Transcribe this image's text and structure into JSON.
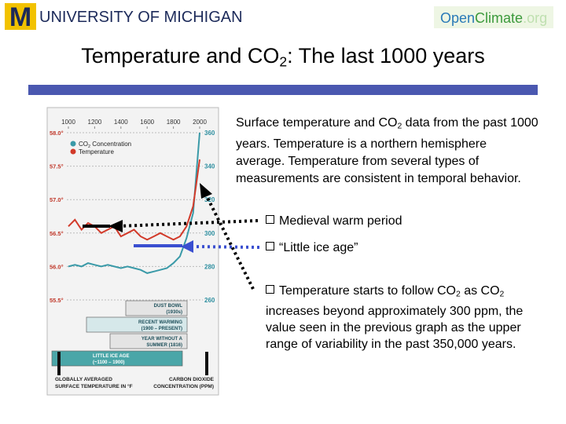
{
  "header": {
    "university": "UNIVERSITY OF MICHIGAN",
    "site": [
      "Open",
      "Climate",
      ".org"
    ]
  },
  "title": [
    "Temperature and CO",
    "2",
    ": The last 1000 years"
  ],
  "body": [
    "Surface temperature and CO",
    "2",
    " data from the past 1000 years.  Temperature is a northern hemisphere average.  Temperature from several types of measurements are consistent in temporal behavior."
  ],
  "bullets": [
    [
      "Medieval warm period"
    ],
    [
      "“Little ice age”"
    ],
    [
      "Temperature starts to follow CO",
      "2",
      " as CO",
      "2",
      " increases beyond approximately 300 ppm, the value seen in the previous graph as the upper range of variability in the past 350,000 years."
    ]
  ],
  "chart_data": {
    "type": "line",
    "x": [
      1000,
      1050,
      1100,
      1150,
      1200,
      1250,
      1300,
      1350,
      1400,
      1450,
      1500,
      1550,
      1600,
      1650,
      1700,
      1750,
      1800,
      1850,
      1900,
      1950,
      2000
    ],
    "xlim": [
      1000,
      2000
    ],
    "xticks": [
      1000,
      1200,
      1400,
      1600,
      1800,
      2000
    ],
    "ylim": [
      55.5,
      58
    ],
    "yticks": [
      {
        "value": 58,
        "label": "58.0°"
      },
      {
        "value": 57.5,
        "label": "57.5°"
      },
      {
        "value": 57,
        "label": "57.0°"
      },
      {
        "value": 56.5,
        "label": "56.5°"
      },
      {
        "value": 56,
        "label": "56.0°"
      },
      {
        "value": 55.5,
        "label": "55.5°"
      }
    ],
    "y2lim": [
      260,
      360
    ],
    "y2ticks": [
      360,
      340,
      320,
      300,
      280,
      260
    ],
    "grid": true,
    "series": [
      {
        "name": [
          "CO",
          "2",
          " Concentration"
        ],
        "color": "#3a9aa8",
        "axis": "y2",
        "values": [
          280,
          281,
          280,
          282,
          281,
          280,
          281,
          280,
          279,
          280,
          279,
          278,
          276,
          277,
          278,
          279,
          282,
          286,
          297,
          312,
          360
        ]
      },
      {
        "name": [
          "Temperature"
        ],
        "color": "#d23a2a",
        "values": [
          56.6,
          56.7,
          56.55,
          56.65,
          56.6,
          56.5,
          56.55,
          56.6,
          56.45,
          56.5,
          56.55,
          56.45,
          56.4,
          56.45,
          56.5,
          56.45,
          56.4,
          56.45,
          56.6,
          56.9,
          57.6
        ]
      }
    ],
    "annotations": [
      [
        "DUST BOWL",
        "(1930s)"
      ],
      [
        "RECENT WARMING",
        "(1900 – PRESENT)"
      ],
      [
        "YEAR WITHOUT A",
        "SUMMER (1816)"
      ],
      [
        "LITTLE ICE AGE",
        "(~1100 – 1900)"
      ]
    ],
    "xlabel": [
      "GLOBALLY AVERAGED",
      "SURFACE TEMPERATURE IN °F"
    ],
    "y2label": [
      "CARBON DIOXIDE",
      "CONCENTRATION (PPM)"
    ]
  }
}
